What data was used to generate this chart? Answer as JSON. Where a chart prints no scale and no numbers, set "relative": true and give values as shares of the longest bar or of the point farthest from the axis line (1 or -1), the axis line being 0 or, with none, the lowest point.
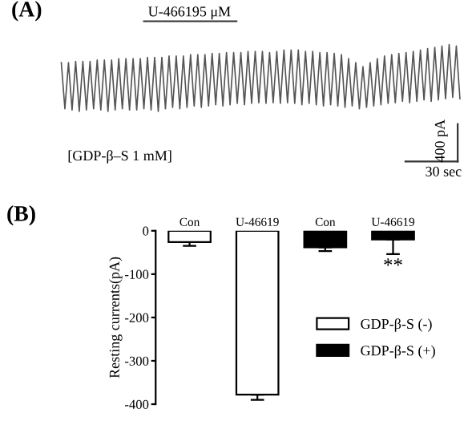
{
  "chart_data": [
    {
      "type": "line",
      "title": "(A)",
      "relative": true,
      "color": "#555555",
      "annotations": [
        "U-466195 μM",
        "[GDP-β–S 1 mM]",
        "400 pA",
        "30 sec"
      ],
      "categories": [
        null,
        null,
        null,
        null,
        null,
        null,
        null,
        null,
        null,
        null,
        null,
        null,
        null,
        null,
        null,
        null,
        null,
        null,
        null,
        null,
        null,
        null,
        null,
        null,
        null,
        null,
        null,
        null,
        null,
        null,
        null,
        null,
        null,
        null,
        null,
        null,
        null,
        null,
        null,
        null,
        null,
        null,
        null,
        null,
        null,
        null,
        null,
        null,
        null,
        null,
        null,
        null,
        null,
        null,
        null,
        null,
        null,
        null,
        null,
        null,
        null,
        null,
        null,
        null,
        null,
        null,
        null,
        null,
        null,
        null,
        null,
        null,
        null,
        null,
        null,
        null,
        null,
        null,
        null,
        null,
        null,
        null,
        null,
        null,
        null,
        null,
        null,
        null,
        null,
        null,
        null,
        null,
        null,
        null,
        null,
        null,
        null,
        null,
        null,
        null,
        null,
        null,
        null,
        null,
        null,
        null,
        null,
        null,
        null,
        null,
        null,
        null
      ],
      "values": [
        0.73,
        0.04,
        0.73,
        0.02,
        0.75,
        0,
        0.75,
        0.02,
        0.75,
        0.04,
        0.77,
        0.02,
        0.77,
        0,
        0.77,
        0.02,
        0.79,
        0.04,
        0.79,
        0.02,
        0.79,
        0.02,
        0.79,
        0.04,
        0.81,
        0.02,
        0.81,
        0,
        0.81,
        0.04,
        0.83,
        0.06,
        0.83,
        0.04,
        0.83,
        0.06,
        0.85,
        0.08,
        0.85,
        0.06,
        0.85,
        0.08,
        0.87,
        0.1,
        0.87,
        0.08,
        0.88,
        0.1,
        0.88,
        0.12,
        0.88,
        0.1,
        0.9,
        0.12,
        0.9,
        0.13,
        0.9,
        0.12,
        0.88,
        0.13,
        0.9,
        0.12,
        0.92,
        0.13,
        0.92,
        0.12,
        0.92,
        0.1,
        0.9,
        0.12,
        0.9,
        0.1,
        0.88,
        0.08,
        0.88,
        0.1,
        0.87,
        0.08,
        0.85,
        0.06,
        0.79,
        0.08,
        0.73,
        0.04,
        0.67,
        0.06,
        0.73,
        0.08,
        0.79,
        0.1,
        0.83,
        0.12,
        0.85,
        0.13,
        0.87,
        0.15,
        0.88,
        0.13,
        0.9,
        0.15,
        0.92,
        0.17,
        0.94,
        0.15,
        0.96,
        0.17,
        0.98,
        0.19,
        1,
        0.21,
        0.98,
        0.19
      ]
    },
    {
      "type": "bar",
      "title": "(B)",
      "ylabel": "Resting currents(pA)",
      "categories": [
        "Con",
        "U-46619",
        "Con",
        "U-46619"
      ],
      "ylim": [
        -400,
        0
      ],
      "yticks": [
        0,
        -100,
        -200,
        -300,
        -400
      ],
      "legend": "right",
      "annotations": [
        "**"
      ],
      "series": [
        {
          "name": "GDP-β-S (-)",
          "color": "#ffffff",
          "values": [
            -26,
            -378,
            null,
            null
          ],
          "errors": [
            [
              -35,
              -26
            ],
            [
              -390,
              -378
            ],
            null,
            null
          ]
        },
        {
          "name": "GDP-β-S (+)",
          "color": "#000000",
          "values": [
            null,
            null,
            -38,
            -20
          ],
          "errors": [
            null,
            null,
            [
              -47,
              -38
            ],
            [
              -54,
              -20
            ]
          ]
        }
      ]
    }
  ]
}
